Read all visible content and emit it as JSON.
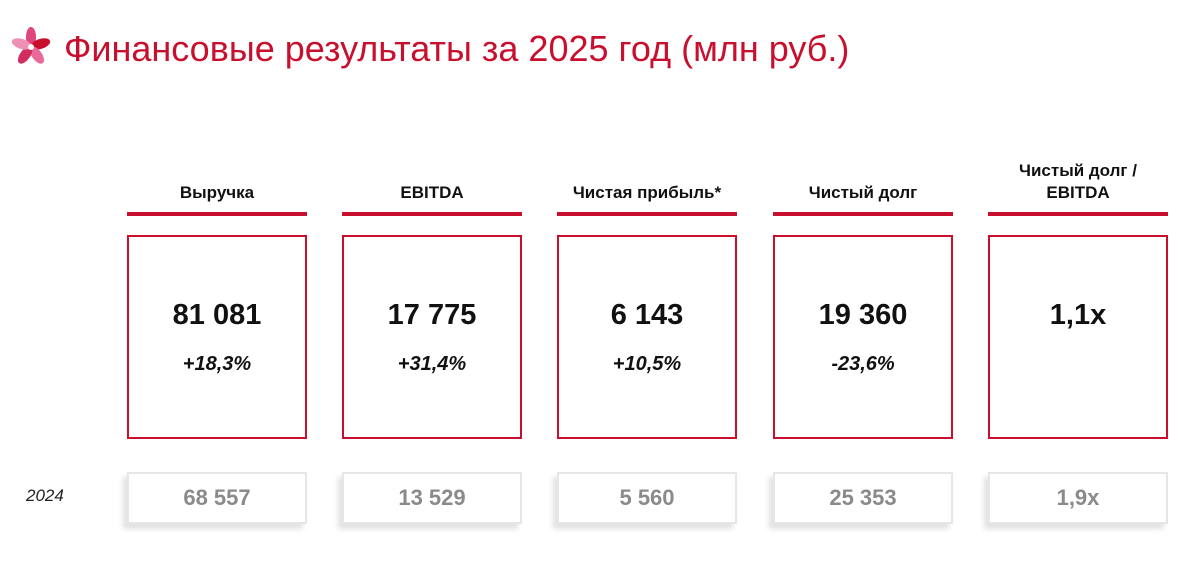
{
  "header": {
    "title": "Финансовые результаты за 2025 год (млн руб.)",
    "logo_icon": "flower-logo-icon",
    "accent_color": "#c8102e"
  },
  "prev_year_label": "2024",
  "metrics": [
    {
      "label": "Выручка",
      "value": "81 081",
      "change": "+18,3%",
      "prev": "68 557"
    },
    {
      "label": "EBITDA",
      "value": "17 775",
      "change": "+31,4%",
      "prev": "13 529"
    },
    {
      "label": "Чистая прибыль*",
      "value": "6 143",
      "change": "+10,5%",
      "prev": "5 560"
    },
    {
      "label": "Чистый долг",
      "value": "19 360",
      "change": "-23,6%",
      "prev": "25 353"
    },
    {
      "label": "Чистый долг / EBITDA",
      "value": "1,1x",
      "change": "",
      "prev": "1,9x"
    }
  ]
}
